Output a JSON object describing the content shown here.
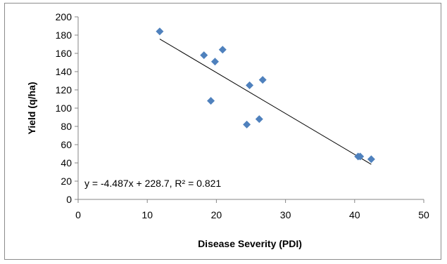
{
  "chart_data": {
    "type": "scatter",
    "xlabel": "Disease Severity (PDI)",
    "ylabel": "Yield (q/ha)",
    "xlim": [
      0,
      50
    ],
    "ylim": [
      0,
      200
    ],
    "xticks": [
      0,
      10,
      20,
      30,
      40,
      50
    ],
    "yticks": [
      0,
      20,
      40,
      60,
      80,
      100,
      120,
      140,
      160,
      180,
      200
    ],
    "grid": false,
    "legend": "none",
    "series": [
      {
        "marker": "diamond",
        "color": "#4f81bd",
        "x": [
          11.8,
          18.2,
          19.2,
          19.8,
          20.9,
          24.4,
          24.8,
          26.2,
          26.7,
          40.5,
          40.8,
          42.4
        ],
        "y": [
          184,
          158,
          108,
          151,
          164,
          82,
          125,
          88,
          131,
          47,
          47,
          44
        ]
      }
    ],
    "trendline": {
      "type": "linear",
      "slope": -4.487,
      "intercept": 228.7,
      "x_range": [
        11.8,
        42.4
      ],
      "color": "#000000"
    },
    "annotation": "y = -4.487x + 228.7, R² = 0.821"
  }
}
